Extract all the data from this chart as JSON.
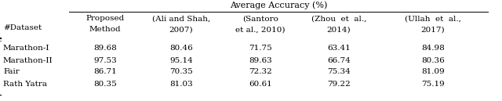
{
  "title": "Average Accuracy (%)",
  "col_header_row1": [
    "",
    "Proposed",
    "(Ali and Shah,",
    "(Santoro",
    "(Zhou  et  al.,",
    "(Ullah  et  al.,"
  ],
  "col_header_row2": [
    "#Dataset",
    "Method",
    "2007)",
    "et al., 2010)",
    "2014)",
    "2017)"
  ],
  "rows": [
    [
      "Marathon-I",
      "89.68",
      "80.46",
      "71.75",
      "63.41",
      "84.98"
    ],
    [
      "Marathon-II",
      "97.53",
      "95.14",
      "89.63",
      "66.74",
      "80.36"
    ],
    [
      "Fair",
      "86.71",
      "70.35",
      "72.32",
      "75.34",
      "81.09"
    ],
    [
      "Rath Yatra",
      "80.35",
      "81.03",
      "60.61",
      "79.22",
      "75.19"
    ]
  ],
  "background": "#ffffff",
  "text_color": "#000000",
  "font_size": 7.5
}
